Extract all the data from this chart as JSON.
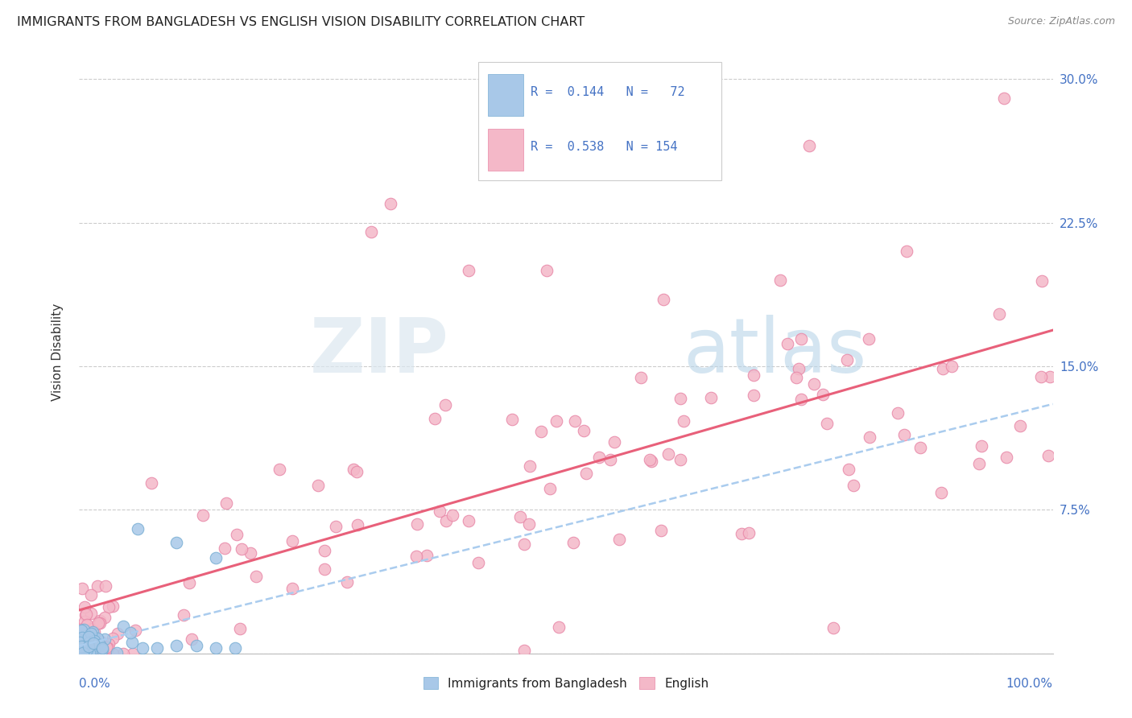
{
  "title": "IMMIGRANTS FROM BANGLADESH VS ENGLISH VISION DISABILITY CORRELATION CHART",
  "source": "Source: ZipAtlas.com",
  "ylabel": "Vision Disability",
  "color_blue": "#a8c8e8",
  "color_blue_edge": "#7aafd4",
  "color_pink": "#f4b8c8",
  "color_pink_edge": "#e888a8",
  "color_blue_line": "#aaccee",
  "color_pink_line": "#e8607a",
  "color_axis_text": "#4472c4",
  "color_title": "#222222",
  "color_source": "#888888",
  "background_color": "#ffffff",
  "watermark_color": "#e0e8f0",
  "title_fontsize": 11.5,
  "source_fontsize": 9,
  "axis_fontsize": 11,
  "legend_fontsize": 11,
  "xlim": [
    0.0,
    1.0
  ],
  "ylim": [
    0.0,
    0.315
  ],
  "ytick_vals": [
    0.0,
    0.075,
    0.15,
    0.225,
    0.3
  ],
  "ytick_labels": [
    "",
    "7.5%",
    "15.0%",
    "22.5%",
    "30.0%"
  ]
}
